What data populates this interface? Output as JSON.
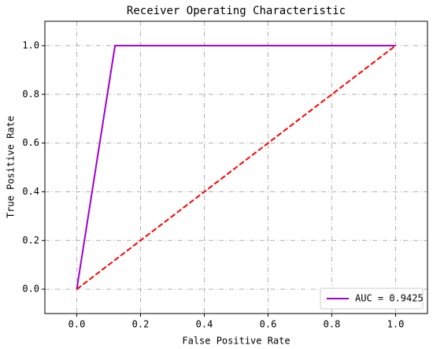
{
  "chart_data": {
    "type": "line",
    "title": "Receiver Operating Characteristic",
    "x_label": "False Positive Rate",
    "y_label": "True Positive Rate",
    "series": [
      {
        "name": "AUC = 0.9425",
        "color": "#a000d0",
        "dash": "solid",
        "x": [
          0,
          0.12,
          1
        ],
        "values": [
          0,
          1,
          1
        ]
      },
      {
        "color": "#ff0000",
        "dash": "dashed",
        "x": [
          0,
          1
        ],
        "values": [
          0,
          1
        ]
      }
    ],
    "xlim": [
      -0.1,
      1.1
    ],
    "ylim": [
      -0.1,
      1.1
    ],
    "xticks": [
      {
        "value": 0,
        "label": "0.0"
      },
      0.2,
      0.4,
      0.6,
      0.8,
      {
        "value": 1,
        "label": "1.0"
      }
    ],
    "yticks": [
      {
        "value": 0,
        "label": "0.0"
      },
      0.2,
      0.4,
      0.6,
      0.8,
      {
        "value": 1,
        "label": "1.0"
      }
    ],
    "grid": true,
    "legend": "lower right"
  }
}
